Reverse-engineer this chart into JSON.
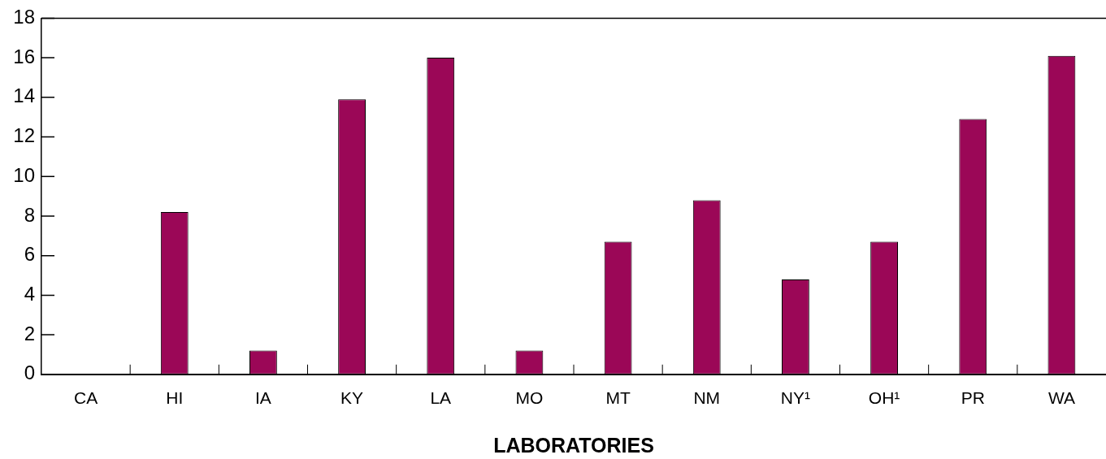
{
  "chart_data": {
    "type": "bar",
    "xlabel": "LABORATORIES",
    "categories": [
      "CA",
      "HI",
      "IA",
      "KY",
      "LA",
      "MO",
      "MT",
      "NM",
      "NY¹",
      "OH¹",
      "PR",
      "WA"
    ],
    "values": [
      0,
      8.2,
      1.2,
      13.9,
      16,
      1.2,
      6.7,
      8.8,
      4.8,
      6.7,
      12.9,
      16.1
    ],
    "color": "#9b0757",
    "ylim": [
      0,
      18
    ],
    "yticks": [
      0,
      2,
      4,
      6,
      8,
      10,
      12,
      14,
      16,
      18
    ]
  }
}
